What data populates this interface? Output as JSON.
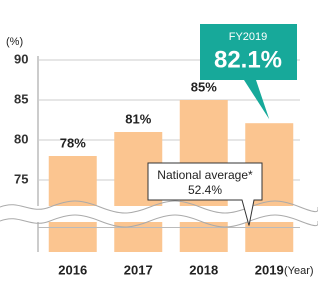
{
  "chart_data": {
    "type": "bar",
    "y_unit": "(%)",
    "x_unit": "(Year)",
    "categories": [
      "2016",
      "2017",
      "2018",
      "2019"
    ],
    "values": [
      78,
      81,
      85,
      82.1
    ],
    "value_labels": [
      "78%",
      "81%",
      "85%",
      "82.1%"
    ],
    "color": "#fbc590",
    "highlight_label": "FY2019",
    "highlight_color": "#17a99a",
    "ylim": [
      0,
      90
    ],
    "axis_break": [
      60,
      72
    ],
    "yticks": [
      75,
      80,
      85,
      90
    ],
    "grid": true,
    "national_average": {
      "label": "National average*",
      "value": 52.4,
      "value_label": "52.4%"
    }
  }
}
